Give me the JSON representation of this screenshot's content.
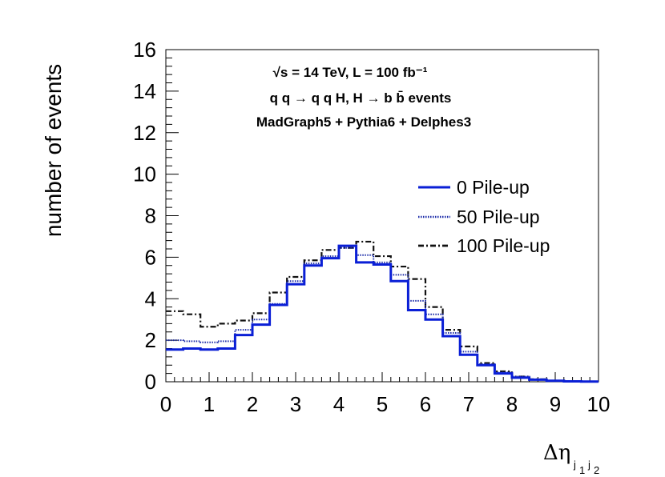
{
  "chart_data": {
    "type": "step",
    "xlabel": {
      "main": "Δη",
      "sub1": "j",
      "sub1_idx": "1",
      "sub2": "j",
      "sub2_idx": "2"
    },
    "ylabel": "number of events",
    "xlim": [
      0,
      10
    ],
    "ylim": [
      0,
      16
    ],
    "xticks": [
      0,
      1,
      2,
      3,
      4,
      5,
      6,
      7,
      8,
      9,
      10
    ],
    "yticks": [
      0,
      2,
      4,
      6,
      8,
      10,
      12,
      14,
      16
    ],
    "annotations": {
      "energy": "√s = 14 TeV, L = 100 fb⁻¹",
      "process": "q q → q q H, H → b b̄ events",
      "generators": "MadGraph5 + Pythia6 + Delphes3"
    },
    "bin_edges": [
      0,
      0.4,
      0.8,
      1.2,
      1.6,
      2.0,
      2.4,
      2.8,
      3.2,
      3.6,
      4.0,
      4.4,
      4.8,
      5.2,
      5.6,
      6.0,
      6.4,
      6.8,
      7.2,
      7.6,
      8.0,
      8.4,
      8.8,
      9.2,
      9.6,
      10.0
    ],
    "series": [
      {
        "name": "0  Pile-up",
        "style": "solid",
        "color": "#0a1fd6",
        "values": [
          1.55,
          1.6,
          1.55,
          1.6,
          2.25,
          2.75,
          3.7,
          4.7,
          5.6,
          5.95,
          6.55,
          5.75,
          5.65,
          4.85,
          3.45,
          3.0,
          2.2,
          1.3,
          0.8,
          0.4,
          0.2,
          0.1,
          0.05,
          0.02,
          0.01
        ]
      },
      {
        "name": "50 Pile-up",
        "style": "dotted",
        "color": "#1a2aa8",
        "values": [
          2.0,
          1.95,
          1.9,
          1.95,
          2.5,
          3.0,
          3.75,
          4.85,
          5.7,
          6.05,
          6.45,
          6.1,
          5.75,
          5.15,
          3.9,
          3.25,
          2.35,
          1.45,
          0.85,
          0.45,
          0.25,
          0.1,
          0.05,
          0.02,
          0.01
        ]
      },
      {
        "name": "100 Pile-up",
        "style": "dashdot",
        "color": "#111111",
        "values": [
          3.4,
          3.25,
          2.65,
          2.8,
          2.95,
          3.3,
          4.3,
          5.05,
          5.85,
          6.35,
          6.45,
          6.75,
          6.05,
          5.55,
          4.95,
          3.6,
          2.5,
          1.7,
          0.9,
          0.5,
          0.25,
          0.12,
          0.05,
          0.02,
          0.01
        ]
      }
    ]
  }
}
